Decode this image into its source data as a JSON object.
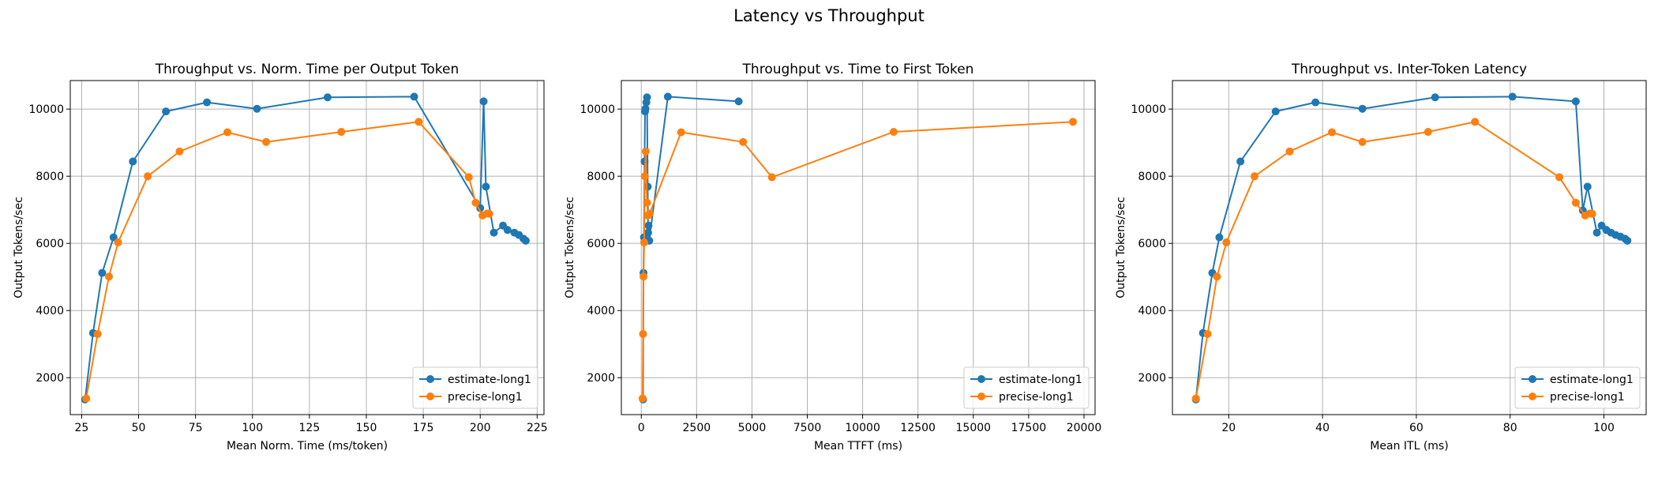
{
  "figure": {
    "suptitle": "Latency vs Throughput"
  },
  "chart_data": [
    {
      "type": "line",
      "title": "Throughput vs. Norm. Time per Output Token",
      "xlabel": "Mean Norm. Time (ms/token)",
      "ylabel": "Output Tokens/sec",
      "xlim": [
        20,
        228
      ],
      "ylim": [
        900,
        10850
      ],
      "xticks": [
        25,
        50,
        75,
        100,
        125,
        150,
        175,
        200,
        225
      ],
      "yticks": [
        2000,
        4000,
        6000,
        8000,
        10000
      ],
      "grid": true,
      "legend_position": "bottom-right",
      "series": [
        {
          "name": "estimate-long1",
          "color": "#1f77b4",
          "x": [
            26.5,
            30,
            34,
            39,
            47.5,
            62,
            80,
            102,
            133,
            171,
            200,
            201.5,
            202.5,
            206,
            210,
            212,
            215,
            217,
            219,
            220
          ],
          "y": [
            1350,
            3330,
            5120,
            6180,
            8440,
            9930,
            10200,
            10010,
            10350,
            10370,
            7050,
            10230,
            7690,
            6320,
            6530,
            6400,
            6320,
            6250,
            6140,
            6080
          ]
        },
        {
          "name": "precise-long1",
          "color": "#ff7f0e",
          "x": [
            27,
            32,
            37,
            41,
            54,
            68,
            89,
            106,
            139,
            173,
            195,
            198,
            201,
            203,
            204
          ],
          "y": [
            1380,
            3300,
            5010,
            6030,
            8000,
            8740,
            9310,
            9020,
            9320,
            9620,
            7970,
            7210,
            6830,
            6890,
            6880
          ]
        }
      ]
    },
    {
      "type": "line",
      "title": "Throughput vs. Time to First Token",
      "xlabel": "Mean TTFT (ms)",
      "ylabel": "Output Tokens/sec",
      "xlim": [
        -900,
        20500
      ],
      "ylim": [
        900,
        10850
      ],
      "xticks": [
        0,
        2500,
        5000,
        7500,
        10000,
        12500,
        15000,
        17500,
        20000
      ],
      "yticks": [
        2000,
        4000,
        6000,
        8000,
        10000
      ],
      "grid": true,
      "legend_position": "bottom-right",
      "series": [
        {
          "name": "estimate-long1",
          "color": "#1f77b4",
          "x": [
            80,
            100,
            120,
            150,
            170,
            190,
            230,
            260,
            290,
            310,
            330,
            360,
            1200,
            4400
          ],
          "y": [
            1350,
            5120,
            6180,
            8440,
            9930,
            10010,
            10200,
            10350,
            7690,
            6320,
            6530,
            6080,
            10370,
            10230
          ]
        },
        {
          "name": "precise-long1",
          "color": "#ff7f0e",
          "x": [
            60,
            80,
            100,
            130,
            160,
            200,
            260,
            300,
            380,
            1800,
            4600,
            5900,
            11400,
            19500
          ],
          "y": [
            1380,
            3300,
            5010,
            6030,
            8000,
            8740,
            7210,
            6830,
            6890,
            9310,
            9020,
            7970,
            9320,
            9620
          ]
        }
      ]
    },
    {
      "type": "line",
      "title": "Throughput vs. Inter-Token Latency",
      "xlabel": "Mean ITL (ms)",
      "ylabel": "Output Tokens/sec",
      "xlim": [
        8,
        109
      ],
      "ylim": [
        900,
        10850
      ],
      "xticks": [
        20,
        40,
        60,
        80,
        100
      ],
      "yticks": [
        2000,
        4000,
        6000,
        8000,
        10000
      ],
      "grid": true,
      "legend_position": "bottom-right",
      "series": [
        {
          "name": "estimate-long1",
          "color": "#1f77b4",
          "x": [
            13,
            14.5,
            16.5,
            18,
            22.5,
            30,
            38.5,
            48.5,
            64,
            80.5,
            94,
            95.5,
            96.5,
            98.5,
            99.5,
            100.5,
            101.5,
            102.5,
            103.5,
            104.5,
            105
          ],
          "y": [
            1350,
            3330,
            5120,
            6180,
            8440,
            9930,
            10200,
            10010,
            10350,
            10370,
            10230,
            6980,
            7690,
            6320,
            6530,
            6400,
            6320,
            6250,
            6200,
            6140,
            6080
          ]
        },
        {
          "name": "precise-long1",
          "color": "#ff7f0e",
          "x": [
            13,
            15.5,
            17.5,
            19.5,
            25.5,
            33,
            42,
            48.5,
            62.5,
            72.5,
            90.5,
            94,
            96,
            97,
            97.5
          ],
          "y": [
            1380,
            3300,
            5010,
            6030,
            8000,
            8740,
            9310,
            9020,
            9320,
            9620,
            7970,
            7210,
            6830,
            6890,
            6880
          ]
        }
      ]
    }
  ]
}
